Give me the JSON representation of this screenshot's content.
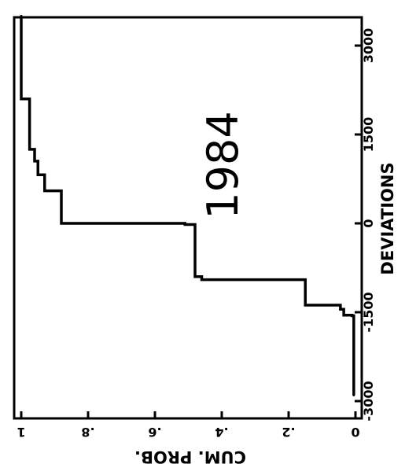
{
  "chart_data": {
    "type": "line",
    "step": true,
    "orientation": "rotated-90-clockwise",
    "title": "",
    "xlabel": "DEVIATIONS",
    "ylabel": "CUM. PROB.",
    "annotation": "1984",
    "xlim": [
      -3000,
      3600
    ],
    "ylim": [
      0,
      1
    ],
    "grid": false,
    "x_ticks": [
      {
        "value": -3000,
        "label": "-3000"
      },
      {
        "value": -1500,
        "label": "-1500"
      },
      {
        "value": 0,
        "label": "0"
      },
      {
        "value": 1500,
        "label": "1500"
      },
      {
        "value": 3000,
        "label": "3000"
      }
    ],
    "y_ticks": [
      {
        "value": 0,
        "label": "0"
      },
      {
        "value": 0.2,
        "label": ".2"
      },
      {
        "value": 0.4,
        "label": ".4"
      },
      {
        "value": 0.6,
        "label": ".6"
      },
      {
        "value": 0.8,
        "label": ".8"
      },
      {
        "value": 1,
        "label": "1"
      }
    ],
    "series": [
      {
        "x": [
          -2900,
          -1560,
          -1550,
          -1450,
          -1380,
          -950,
          -900,
          -20,
          0,
          550,
          820,
          1050,
          1250,
          2100,
          3500
        ],
        "y": [
          0.005,
          0.01,
          0.035,
          0.045,
          0.15,
          0.46,
          0.48,
          0.51,
          0.88,
          0.93,
          0.95,
          0.96,
          0.975,
          1.0,
          1.0
        ]
      }
    ]
  }
}
